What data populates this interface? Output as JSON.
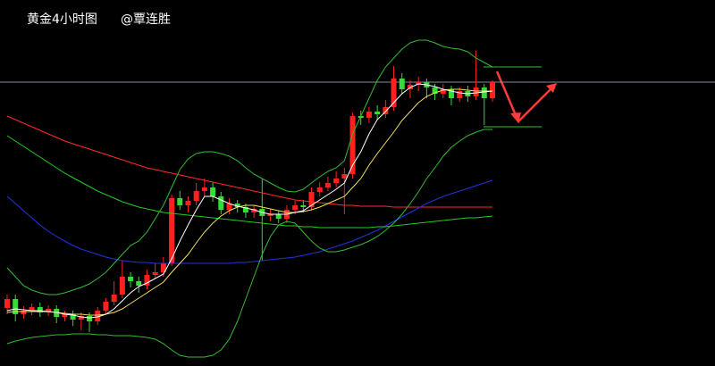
{
  "chart_data": {
    "type": "candlestick",
    "title": "黄金4小时图",
    "subtitle": "@覃连胜",
    "ylim": [
      0,
      410
    ],
    "up_color": "#ff2020",
    "down_color": "#33dd33",
    "open": [
      65,
      75,
      58,
      62,
      66,
      60,
      64,
      55,
      58,
      52,
      56,
      50,
      62,
      72,
      80,
      100,
      95,
      90,
      102,
      105,
      115,
      188,
      180,
      185,
      196,
      200,
      190,
      175,
      182,
      178,
      172,
      176,
      168,
      170,
      165,
      175,
      180,
      178,
      195,
      200,
      205,
      210,
      215,
      280,
      278,
      285,
      282,
      290,
      322,
      310,
      315,
      318,
      312,
      305,
      310,
      300,
      308,
      302,
      312,
      300
    ],
    "high": [
      80,
      80,
      67,
      70,
      71,
      68,
      68,
      62,
      62,
      60,
      60,
      66,
      76,
      95,
      118,
      105,
      100,
      108,
      115,
      122,
      192,
      196,
      190,
      205,
      210,
      206,
      195,
      188,
      186,
      182,
      180,
      210,
      176,
      174,
      180,
      185,
      186,
      200,
      206,
      212,
      218,
      222,
      284,
      286,
      290,
      292,
      298,
      336,
      328,
      320,
      324,
      322,
      316,
      316,
      314,
      312,
      314,
      353,
      316,
      320
    ],
    "low": [
      58,
      50,
      53,
      57,
      55,
      56,
      48,
      50,
      45,
      40,
      38,
      46,
      58,
      68,
      76,
      88,
      82,
      86,
      98,
      100,
      112,
      175,
      172,
      180,
      190,
      184,
      170,
      170,
      172,
      166,
      166,
      118,
      162,
      160,
      160,
      170,
      172,
      174,
      190,
      196,
      200,
      170,
      210,
      270,
      272,
      276,
      278,
      286,
      304,
      300,
      308,
      300,
      298,
      300,
      292,
      296,
      296,
      298,
      270,
      296
    ],
    "close": [
      75,
      58,
      62,
      66,
      60,
      64,
      55,
      58,
      52,
      56,
      50,
      62,
      72,
      80,
      100,
      95,
      90,
      102,
      105,
      115,
      188,
      180,
      185,
      196,
      200,
      190,
      175,
      182,
      178,
      172,
      176,
      168,
      170,
      165,
      175,
      180,
      178,
      195,
      200,
      205,
      210,
      215,
      280,
      278,
      285,
      282,
      290,
      322,
      310,
      315,
      318,
      312,
      305,
      310,
      300,
      308,
      302,
      312,
      300,
      318
    ],
    "lines": [
      {
        "color": "#ff2a2a",
        "values": [
          280,
          276,
          272,
          268,
          264,
          260,
          256,
          252,
          249,
          246,
          243,
          240,
          237,
          234,
          231,
          228,
          225,
          222,
          220,
          218,
          216,
          214,
          212,
          210,
          208,
          206,
          204,
          202,
          200,
          198,
          196,
          194,
          192,
          190,
          188,
          186,
          185,
          184,
          183,
          182,
          181,
          180,
          180,
          179,
          179,
          179,
          179,
          178,
          178,
          178,
          178,
          178,
          178,
          178,
          178,
          178,
          178,
          178,
          178,
          178
        ]
      },
      {
        "color": "#2233dd",
        "values": [
          190,
          182,
          174,
          166,
          158,
          151,
          145,
          140,
          135,
          131,
          128,
          125,
          122,
          120,
          118,
          117,
          116,
          116,
          115,
          115,
          115,
          115,
          115,
          115,
          115,
          115,
          115,
          115,
          116,
          116,
          117,
          118,
          119,
          120,
          121,
          122,
          124,
          126,
          128,
          131,
          134,
          137,
          140,
          144,
          148,
          152,
          157,
          162,
          167,
          172,
          177,
          182,
          186,
          190,
          193,
          196,
          199,
          202,
          205,
          208
        ]
      },
      {
        "color": "#22cc22",
        "values": [
          258,
          252,
          246,
          240,
          234,
          228,
          222,
          216,
          211,
          206,
          201,
          196,
          192,
          188,
          184,
          181,
          178,
          176,
          174,
          172,
          171,
          170,
          169,
          168,
          167,
          166,
          165,
          164,
          163,
          162,
          161,
          160,
          159,
          158,
          157,
          157,
          156,
          156,
          155,
          155,
          155,
          155,
          155,
          155,
          155,
          156,
          156,
          157,
          158,
          159,
          160,
          161,
          162,
          163,
          164,
          165,
          166,
          166,
          167,
          168
        ]
      },
      {
        "color": "#33bb33",
        "values": [
          110,
          100,
          90,
          85,
          82,
          80,
          80,
          82,
          85,
          88,
          92,
          98,
          105,
          115,
          125,
          135,
          140,
          150,
          165,
          180,
          200,
          220,
          232,
          238,
          240,
          240,
          238,
          235,
          230,
          222,
          215,
          210,
          205,
          200,
          196,
          195,
          198,
          205,
          212,
          218,
          222,
          230,
          260,
          280,
          300,
          320,
          335,
          345,
          355,
          362,
          365,
          365,
          362,
          358,
          356,
          355,
          352,
          345,
          340,
          335
        ]
      },
      {
        "color": "#33bb33",
        "values": [
          25,
          28,
          30,
          32,
          33,
          34,
          35,
          35,
          36,
          36,
          36,
          35,
          35,
          34,
          34,
          34,
          33,
          32,
          30,
          25,
          18,
          12,
          10,
          10,
          10,
          12,
          18,
          30,
          50,
          75,
          100,
          125,
          145,
          158,
          162,
          160,
          150,
          140,
          132,
          128,
          128,
          130,
          133,
          136,
          140,
          145,
          152,
          160,
          170,
          182,
          195,
          210,
          222,
          235,
          245,
          252,
          258,
          262,
          265,
          265
        ]
      },
      {
        "color": "#f0e060",
        "values": [
          60,
          61,
          61,
          61,
          61,
          61,
          60,
          59,
          58,
          58,
          57,
          57,
          58,
          60,
          64,
          70,
          76,
          82,
          88,
          94,
          105,
          115,
          125,
          138,
          150,
          160,
          168,
          174,
          178,
          180,
          180,
          178,
          176,
          174,
          172,
          172,
          173,
          175,
          178,
          182,
          186,
          190,
          200,
          210,
          225,
          238,
          250,
          262,
          275,
          285,
          295,
          302,
          306,
          309,
          310,
          310,
          309,
          308,
          308,
          308
        ]
      },
      {
        "color": "#ffffff",
        "values": [
          62,
          64,
          63,
          62,
          62,
          61,
          60,
          58,
          57,
          55,
          54,
          55,
          58,
          64,
          73,
          82,
          89,
          93,
          98,
          103,
          120,
          140,
          158,
          175,
          190,
          190,
          186,
          182,
          179,
          177,
          175,
          172,
          170,
          170,
          170,
          172,
          174,
          180,
          186,
          192,
          198,
          205,
          225,
          240,
          260,
          276,
          285,
          295,
          305,
          312,
          316,
          315,
          313,
          310,
          308,
          306,
          305,
          306,
          307,
          308
        ]
      }
    ],
    "reference_line": {
      "value": 318,
      "color": "#8888a8"
    }
  }
}
